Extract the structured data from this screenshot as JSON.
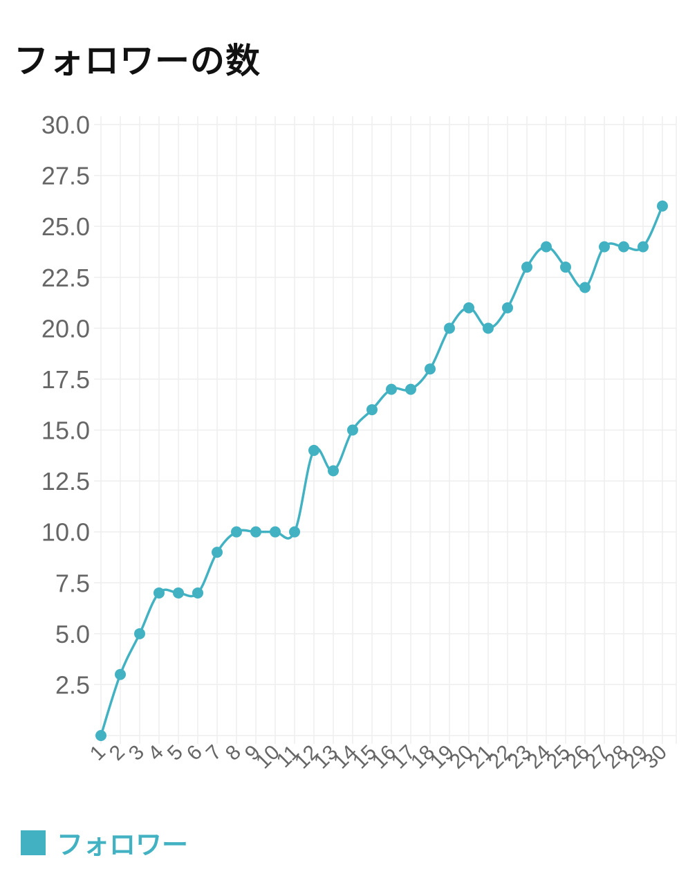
{
  "title": "フォロワーの数",
  "colors": {
    "series": "#42b2c3",
    "grid": "#eeeeee",
    "tick": "#666666",
    "title": "#111111"
  },
  "chart_data": {
    "type": "line",
    "title": "",
    "xlabel": "",
    "ylabel": "",
    "x": [
      "1",
      "2",
      "3",
      "4",
      "5",
      "6",
      "7",
      "8",
      "9",
      "10",
      "11",
      "12",
      "13",
      "14",
      "15",
      "16",
      "17",
      "18",
      "19",
      "20",
      "21",
      "22",
      "23",
      "24",
      "25",
      "26",
      "27",
      "28",
      "29",
      "30"
    ],
    "series": [
      {
        "name": "フォロワー",
        "values": [
          0,
          3,
          5,
          7,
          7,
          7,
          9,
          10,
          10,
          10,
          10,
          14,
          13,
          15,
          16,
          17,
          17,
          18,
          20,
          21,
          20,
          21,
          23,
          24,
          23,
          22,
          24,
          24,
          24,
          26
        ]
      }
    ],
    "ylim": [
      0,
      30
    ],
    "yticks": [
      "2.5",
      "5.0",
      "7.5",
      "10.0",
      "12.5",
      "15.0",
      "17.5",
      "20.0",
      "22.5",
      "25.0",
      "27.5",
      "30.0"
    ],
    "grid": true,
    "legend": "bottom-left"
  }
}
